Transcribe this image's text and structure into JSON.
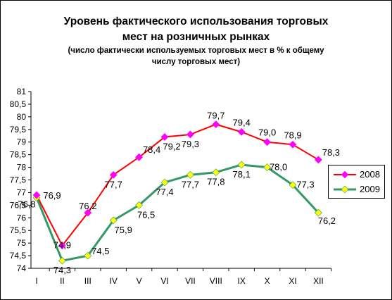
{
  "title_line1": "Уровень фактического использования торговых",
  "title_line2": "мест на розничных рынках",
  "subtitle_line1": "(число фактически используемых торговых мест в % к общему",
  "subtitle_line2": "числу торговых мест)",
  "colors": {
    "s2008": "#ff0000",
    "s2008_marker": "#ff00ff",
    "s2009": "#339966",
    "s2009_marker": "#ffff00",
    "grid": "#808080"
  },
  "chart_data": {
    "type": "line",
    "title": "Уровень фактического использования торговых мест на розничных рынках",
    "subtitle": "(число фактически используемых торговых мест в % к общему числу торговых мест)",
    "categories": [
      "I",
      "II",
      "III",
      "IV",
      "V",
      "VI",
      "VII",
      "VIII",
      "IX",
      "X",
      "XI",
      "XII"
    ],
    "ylim": [
      74,
      81
    ],
    "yticks": [
      "74",
      "74,5",
      "75",
      "75,5",
      "76",
      "76,5",
      "77",
      "77,5",
      "78",
      "78,5",
      "79",
      "79,5",
      "80",
      "80,5",
      "81"
    ],
    "grid": false,
    "legend_position": "right",
    "series": [
      {
        "name": "2008",
        "values": [
          76.9,
          74.9,
          76.2,
          77.7,
          78.4,
          79.2,
          79.3,
          79.7,
          79.4,
          79.0,
          78.9,
          78.3
        ],
        "labels": [
          null,
          "74,9",
          "76,2",
          "77,7",
          "78,4",
          "79,2",
          "79,3",
          "79,7",
          "79,4",
          "79,0",
          "78,9",
          "78,3"
        ]
      },
      {
        "name": "2009",
        "values": [
          76.8,
          74.3,
          74.5,
          75.9,
          76.5,
          77.4,
          77.7,
          77.8,
          78.1,
          78.0,
          77.3,
          76.2
        ],
        "labels": [
          "76,8",
          "74,3",
          "74,5",
          "75,9",
          "76,5",
          "77,4",
          "77,7",
          "77,8",
          "78,1",
          "78,0",
          "77,3",
          "76,2"
        ]
      }
    ],
    "extra_labels": [
      "76,9"
    ]
  }
}
